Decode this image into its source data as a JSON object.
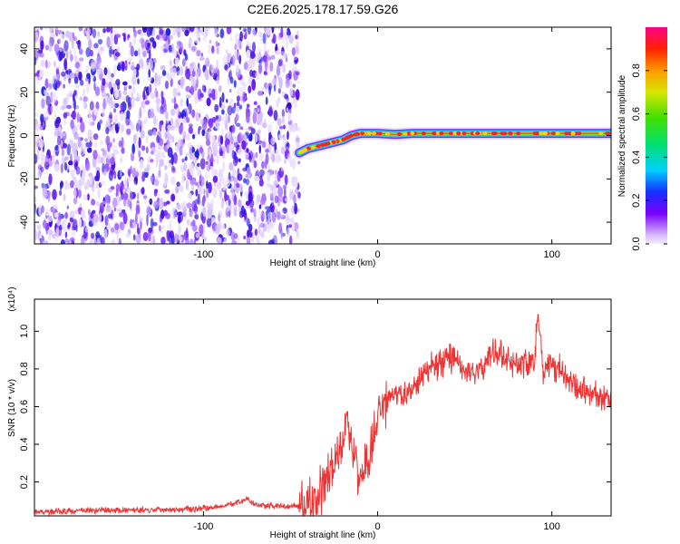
{
  "title": "C2E6.2025.178.17.59.G26",
  "chart_data": [
    {
      "type": "heatmap",
      "xlabel": "Height of straight line (km)",
      "ylabel": "Frequency (Hz)",
      "xlim": [
        -197,
        134
      ],
      "ylim": [
        -50,
        50
      ],
      "x_ticks": [
        "-100",
        "0",
        "100"
      ],
      "x_tick_values": [
        -100,
        0,
        100
      ],
      "y_ticks": [
        "-40",
        "-20",
        "0",
        "20",
        "40"
      ],
      "y_tick_values": [
        -40,
        -20,
        0,
        20,
        40
      ],
      "noise_region_x": [
        -197,
        -45
      ],
      "signal_line": {
        "x": [
          -45,
          -40,
          -30,
          -20,
          -15,
          -10,
          -5,
          0,
          10,
          20,
          40,
          60,
          80,
          100,
          134
        ],
        "frequency": [
          -8,
          -6,
          -4,
          -2,
          0,
          1,
          1,
          1,
          0.5,
          1,
          1,
          1,
          1,
          1,
          1
        ]
      },
      "colorbar": {
        "label": "Normalized spectral amplitude",
        "range": [
          0,
          1
        ],
        "ticks": [
          "0.0",
          "0.2",
          "0.4",
          "0.6",
          "0.8"
        ],
        "tick_values": [
          0.0,
          0.2,
          0.4,
          0.6,
          0.8
        ]
      }
    },
    {
      "type": "line",
      "xlabel": "Height of straight line (km)",
      "ylabel": "SNR (10 * v/v)",
      "yunit": "(x10⁴)",
      "xlim": [
        -197,
        134
      ],
      "ylim": [
        0.02,
        1.17
      ],
      "x_ticks": [
        "-100",
        "0",
        "100"
      ],
      "x_tick_values": [
        -100,
        0,
        100
      ],
      "y_ticks": [
        "0.2",
        "0.4",
        "0.6",
        "0.8",
        "1.0"
      ],
      "y_tick_values": [
        0.2,
        0.4,
        0.6,
        0.8,
        1.0
      ],
      "series_color": "#ee3333",
      "x": [
        -197,
        -180,
        -160,
        -140,
        -120,
        -100,
        -90,
        -80,
        -75,
        -70,
        -60,
        -50,
        -40,
        -35,
        -30,
        -25,
        -20,
        -18,
        -15,
        -10,
        -5,
        0,
        5,
        10,
        15,
        20,
        25,
        30,
        35,
        40,
        45,
        50,
        55,
        60,
        65,
        70,
        75,
        80,
        85,
        90,
        92,
        95,
        100,
        105,
        110,
        115,
        120,
        125,
        130,
        134
      ],
      "y": [
        0.04,
        0.045,
        0.05,
        0.05,
        0.055,
        0.06,
        0.07,
        0.09,
        0.11,
        0.08,
        0.07,
        0.07,
        0.08,
        0.1,
        0.18,
        0.28,
        0.4,
        0.58,
        0.35,
        0.25,
        0.3,
        0.55,
        0.62,
        0.66,
        0.65,
        0.72,
        0.76,
        0.8,
        0.82,
        0.86,
        0.84,
        0.8,
        0.78,
        0.8,
        0.88,
        0.9,
        0.86,
        0.82,
        0.84,
        0.86,
        1.1,
        0.8,
        0.82,
        0.78,
        0.72,
        0.7,
        0.68,
        0.66,
        0.64,
        0.66
      ]
    }
  ]
}
